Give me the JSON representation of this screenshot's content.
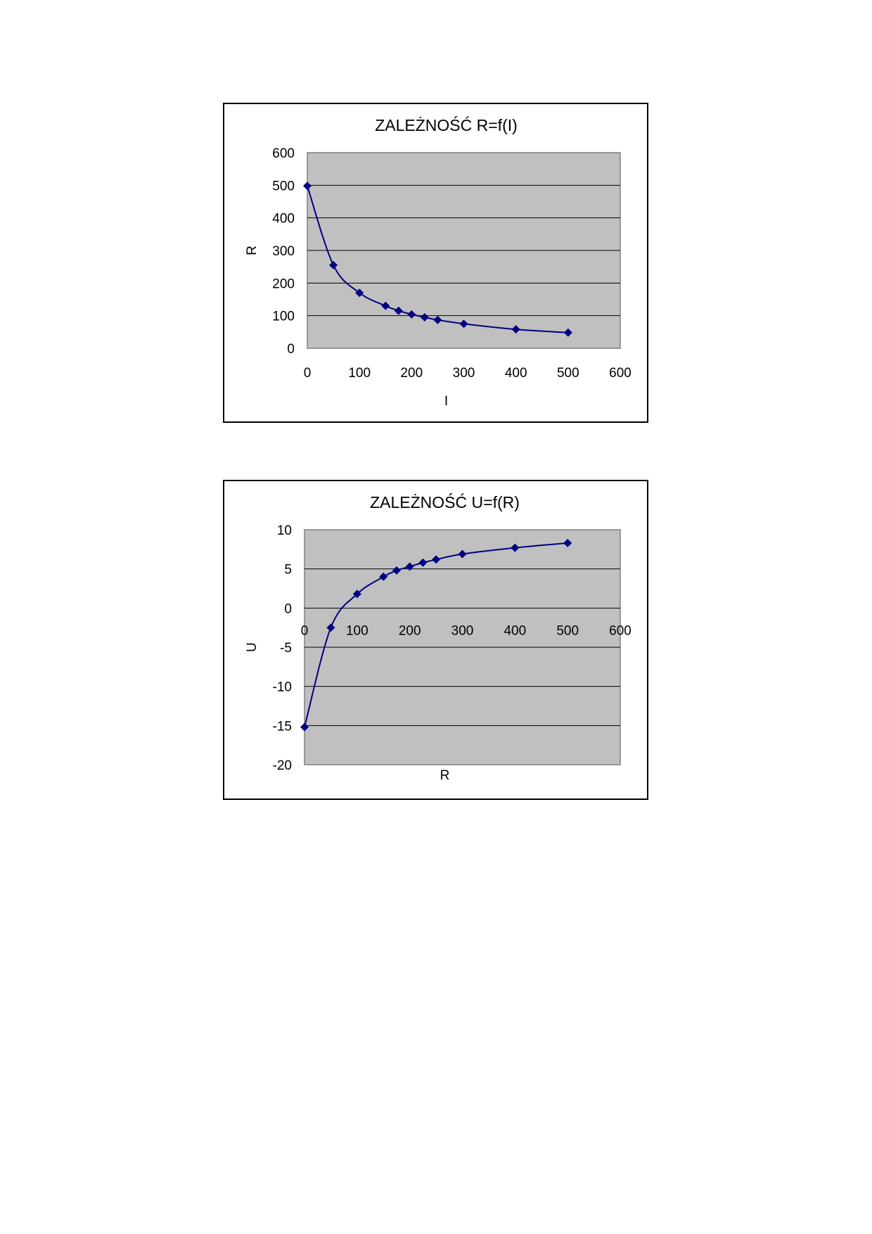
{
  "chart_data": [
    {
      "type": "scatter",
      "title": "ZALEŻNOŚĆ R=f(I)",
      "xlabel": "I",
      "ylabel": "R",
      "xlim": [
        0,
        600
      ],
      "ylim": [
        0,
        600
      ],
      "xticks": [
        "0",
        "100",
        "200",
        "300",
        "400",
        "500",
        "600"
      ],
      "yticks": [
        "0",
        "100",
        "200",
        "300",
        "400",
        "500",
        "600"
      ],
      "grid": true,
      "smooth_line": true,
      "series": [
        {
          "x": [
            0,
            50,
            100,
            150,
            175,
            200,
            225,
            250,
            300,
            400,
            500
          ],
          "y": [
            498,
            255,
            170,
            130,
            115,
            104,
            95,
            87,
            75,
            58,
            48
          ]
        }
      ]
    },
    {
      "type": "scatter",
      "title": "ZALEŻNOŚĆ U=f(R)",
      "xlabel": "R",
      "ylabel": "U",
      "xlim": [
        0,
        600
      ],
      "ylim": [
        -20,
        10
      ],
      "xticks": [
        "0",
        "100",
        "200",
        "300",
        "400",
        "500",
        "600"
      ],
      "yticks": [
        "10",
        "5",
        "0",
        "-5",
        "-10",
        "-15",
        "-20"
      ],
      "grid": true,
      "smooth_line": true,
      "series": [
        {
          "x": [
            0,
            50,
            100,
            150,
            175,
            200,
            225,
            250,
            300,
            400,
            500
          ],
          "y": [
            -15.2,
            -2.5,
            1.8,
            4.0,
            4.8,
            5.3,
            5.8,
            6.2,
            6.9,
            7.7,
            8.3
          ]
        }
      ]
    }
  ],
  "colors": {
    "plot_background": "#c0c0c0",
    "series_color": "#000080",
    "gridline": "#000000"
  }
}
